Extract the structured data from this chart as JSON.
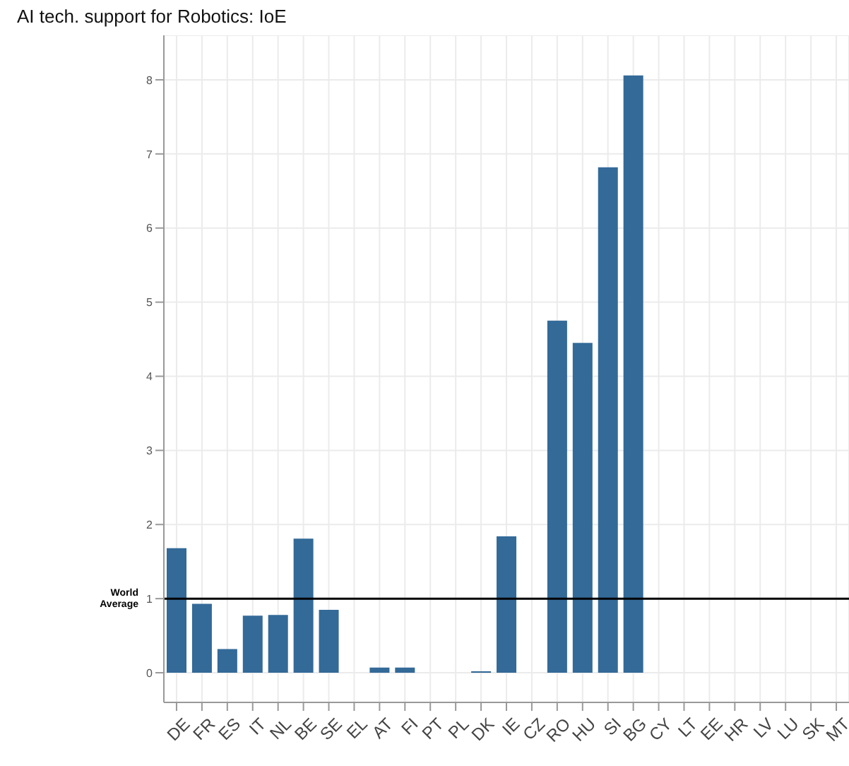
{
  "chart_data": {
    "type": "bar",
    "title": "AI tech. support for Robotics: IoE",
    "categories": [
      "DE",
      "FR",
      "ES",
      "IT",
      "NL",
      "BE",
      "SE",
      "EL",
      "AT",
      "FI",
      "PT",
      "PL",
      "DK",
      "IE",
      "CZ",
      "RO",
      "HU",
      "SI",
      "BG",
      "CY",
      "LT",
      "EE",
      "HR",
      "LV",
      "LU",
      "SK",
      "MT"
    ],
    "values": [
      1.68,
      0.93,
      0.32,
      0.77,
      0.78,
      1.81,
      0.85,
      0,
      0.07,
      0.07,
      0,
      0,
      0.02,
      1.84,
      0,
      4.75,
      4.45,
      6.82,
      8.06,
      0,
      0,
      0,
      0,
      0,
      0,
      0,
      0
    ],
    "color": "#336a98",
    "ylim": [
      -0.4,
      8.6
    ],
    "yticks": [
      0,
      1,
      2,
      3,
      4,
      5,
      6,
      7,
      8
    ],
    "grid": true,
    "ref_lines": [
      {
        "axis": "y",
        "value": 1,
        "label": "World Average",
        "color": "#000000"
      }
    ]
  }
}
